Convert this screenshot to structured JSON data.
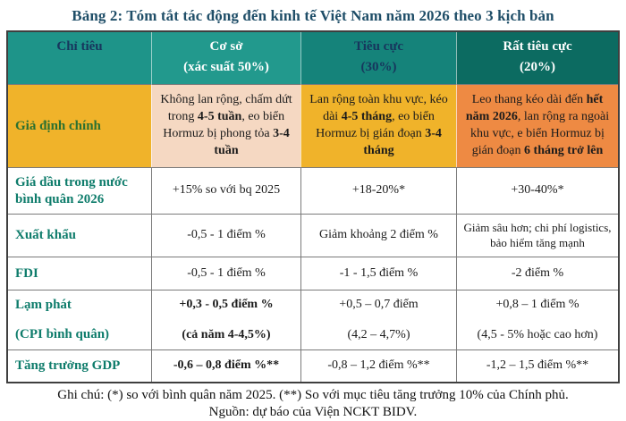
{
  "title": "Bảng 2: Tóm tắt tác động đến kinh tế Việt Nam năm 2026 theo 3 kịch bản",
  "colors": {
    "title_text": "#1F4E68",
    "header_teal_1": "#1E9489",
    "header_teal_2": "#22998D",
    "header_teal_3": "#15837A",
    "header_teal_4": "#0C6B61",
    "header_dark_text": "#17365D",
    "gold": "#F0B32A",
    "peach": "#F5D8C2",
    "orange": "#EE8A43",
    "row_label_teal": "#0E7C6B",
    "assumption_label_green": "#2B7030"
  },
  "table": {
    "header": [
      {
        "text": "Chỉ tiêu",
        "sub": "",
        "bg": "#1E9489",
        "fg": "#17365D"
      },
      {
        "text": "Cơ sở",
        "sub": "(xác suất 50%)",
        "bg": "#22998D",
        "fg": "#FFFFFF"
      },
      {
        "text": "Tiêu cực",
        "sub": "(30%)",
        "bg": "#15837A",
        "fg": "#17365D"
      },
      {
        "text": "Rất tiêu cực",
        "sub": "(20%)",
        "bg": "#0C6B61",
        "fg": "#FFFFFF"
      }
    ],
    "rows": [
      {
        "name": "gia-dinh-chinh",
        "label": {
          "lines": [
            "Giả định chính"
          ],
          "bg": "#F0B32A",
          "fg": "#2B7030"
        },
        "cells": [
          {
            "bg": "#F5D8C2",
            "lines": [
              [
                {
                  "t": "Không lan rộng, chấm dứt trong "
                },
                {
                  "t": "4-5 tuần",
                  "b": true
                },
                {
                  "t": ", eo biển Hormuz bị phong tỏa "
                },
                {
                  "t": "3-4 tuần",
                  "b": true
                }
              ]
            ]
          },
          {
            "bg": "#F0B32A",
            "lines": [
              [
                {
                  "t": "Lan rộng toàn khu vực, kéo dài "
                },
                {
                  "t": "4-5 tháng",
                  "b": true
                },
                {
                  "t": ", eo biển Hormuz bị gián đoạn "
                },
                {
                  "t": "3-4 tháng",
                  "b": true
                }
              ]
            ]
          },
          {
            "bg": "#EE8A43",
            "lines": [
              [
                {
                  "t": "Leo thang kéo dài đến "
                },
                {
                  "t": "hết năm 2026",
                  "b": true
                },
                {
                  "t": ", lan rộng ra ngoài khu vực, e biển Hormuz bị gián đoạn "
                },
                {
                  "t": "6 tháng trở lên",
                  "b": true
                }
              ]
            ]
          }
        ]
      },
      {
        "name": "gia-dau",
        "label": {
          "lines": [
            "Giá dầu trong nước",
            "bình quân 2026"
          ]
        },
        "cells": [
          {
            "lines": [
              [
                {
                  "t": "+15% so với bq 2025"
                }
              ]
            ]
          },
          {
            "lines": [
              [
                {
                  "t": "+18-20%*"
                }
              ]
            ]
          },
          {
            "lines": [
              [
                {
                  "t": "+30-40%*"
                }
              ]
            ]
          }
        ]
      },
      {
        "name": "xuat-khau",
        "label": {
          "lines": [
            "Xuất khẩu"
          ]
        },
        "cells": [
          {
            "lines": [
              [
                {
                  "t": "-0,5 - 1 điểm %"
                }
              ]
            ]
          },
          {
            "lines": [
              [
                {
                  "t": "Giảm khoảng 2 điểm %"
                }
              ]
            ]
          },
          {
            "small": true,
            "lines": [
              [
                {
                  "t": "Giảm sâu hơn; chi phí logistics, bảo hiểm tăng mạnh"
                }
              ]
            ]
          }
        ]
      },
      {
        "name": "fdi",
        "label": {
          "lines": [
            "FDI"
          ]
        },
        "cells": [
          {
            "lines": [
              [
                {
                  "t": "-0,5 - 1 điểm %"
                }
              ]
            ]
          },
          {
            "lines": [
              [
                {
                  "t": "-1 - 1,5 điểm %"
                }
              ]
            ]
          },
          {
            "lines": [
              [
                {
                  "t": "-2 điểm %"
                }
              ]
            ]
          }
        ]
      },
      {
        "name": "lam-phat",
        "gap": true,
        "label": {
          "lines": [
            "Lạm phát",
            "(CPI bình quân)"
          ],
          "gap": true
        },
        "cells": [
          {
            "lines": [
              [
                {
                  "t": "+0,3 - 0,5 điểm %",
                  "b": true
                }
              ],
              [
                {
                  "t": "(cả năm 4-4,5%)",
                  "b": true
                }
              ]
            ]
          },
          {
            "lines": [
              [
                {
                  "t": "+0,5 – 0,7 điểm"
                }
              ],
              [
                {
                  "t": "(4,2 – 4,7%)"
                }
              ]
            ]
          },
          {
            "lines": [
              [
                {
                  "t": "+0,8 – 1 điểm %"
                }
              ],
              [
                {
                  "t": "(4,5 - 5% hoặc cao hơn)"
                }
              ]
            ]
          }
        ]
      },
      {
        "name": "gdp",
        "label": {
          "lines": [
            "Tăng trưởng GDP"
          ]
        },
        "cells": [
          {
            "lines": [
              [
                {
                  "t": "-0,6 – 0,8 điểm %**",
                  "b": true
                }
              ]
            ]
          },
          {
            "lines": [
              [
                {
                  "t": "-0,8 – 1,2 điểm %**"
                }
              ]
            ]
          },
          {
            "lines": [
              [
                {
                  "t": "-1,2 – 1,5 điểm %**"
                }
              ]
            ]
          }
        ]
      }
    ]
  },
  "footer": {
    "note": "Ghi chú: (*) so với bình quân năm 2025. (**) So với mục tiêu tăng trưởng 10% của Chính phủ.",
    "source": "Nguồn: dự báo của Viện NCKT BIDV."
  }
}
